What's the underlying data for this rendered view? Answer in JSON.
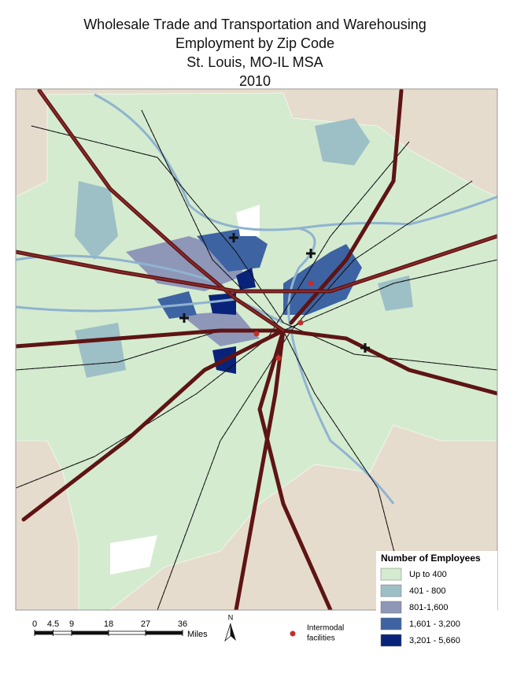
{
  "title": [
    "Wholesale Trade and Transportation and Warehousing",
    "Employment  by Zip Code",
    "St. Louis, MO-IL MSA",
    "2010"
  ],
  "legend": {
    "title": "Number of Employees",
    "items": [
      {
        "label": "Up to 400",
        "color": "#d4ebcf"
      },
      {
        "label": "401 - 800",
        "color": "#9dbfc6"
      },
      {
        "label": "801-1,600",
        "color": "#8e97b8"
      },
      {
        "label": "1,601 - 3,200",
        "color": "#3d63a3"
      },
      {
        "label": "3,201 - 5,660",
        "color": "#0a237a"
      }
    ]
  },
  "scale_bar": {
    "ticks": [
      0,
      4.5,
      9,
      18,
      27,
      36
    ],
    "unit": "Miles"
  },
  "north_arrow": "N",
  "intermodal_label": [
    "Intermodal",
    "facilities"
  ]
}
